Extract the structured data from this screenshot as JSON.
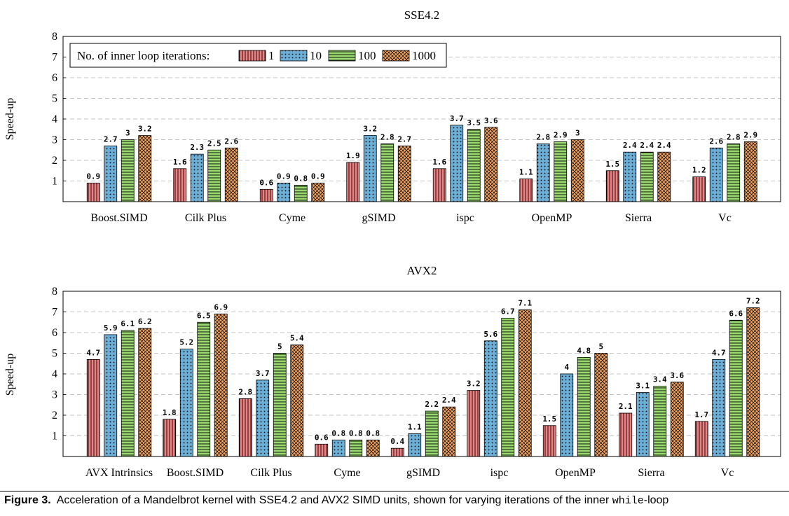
{
  "legend": {
    "title": "No. of inner loop iterations:",
    "entries": [
      "1",
      "10",
      "100",
      "1000"
    ]
  },
  "colors": {
    "s1": "#f08080",
    "s10": "#6baed6",
    "s100": "#98d86e",
    "s1000": "#f4a460"
  },
  "caption": {
    "label": "Figure 3.",
    "text_before": "Acceleration of a Mandelbrot kernel with SSE4.2 and AVX2 SIMD units, shown for varying iterations of the inner",
    "code": "while",
    "text_after": "-loop"
  },
  "chart_data": [
    {
      "type": "bar",
      "title": "SSE4.2",
      "ylabel": "Speed-up",
      "xlabel": "",
      "ylim": [
        0,
        8
      ],
      "yticks": [
        1,
        2,
        3,
        4,
        5,
        6,
        7,
        8
      ],
      "grid": true,
      "legend_position": "top-left",
      "categories": [
        "Boost.SIMD",
        "Cilk Plus",
        "Cyme",
        "gSIMD",
        "ispc",
        "OpenMP",
        "Sierra",
        "Vc"
      ],
      "series": [
        {
          "name": "1",
          "values": [
            0.9,
            1.6,
            0.6,
            1.9,
            1.6,
            1.1,
            1.5,
            1.2
          ]
        },
        {
          "name": "10",
          "values": [
            2.7,
            2.3,
            0.9,
            3.2,
            3.7,
            2.8,
            2.4,
            2.6
          ]
        },
        {
          "name": "100",
          "values": [
            3,
            2.5,
            0.8,
            2.8,
            3.5,
            2.9,
            2.4,
            2.8
          ]
        },
        {
          "name": "1000",
          "values": [
            3.2,
            2.6,
            0.9,
            2.7,
            3.6,
            3,
            2.4,
            2.9
          ]
        }
      ]
    },
    {
      "type": "bar",
      "title": "AVX2",
      "ylabel": "Speed-up",
      "xlabel": "",
      "ylim": [
        0,
        8
      ],
      "yticks": [
        1,
        2,
        3,
        4,
        5,
        6,
        7,
        8
      ],
      "grid": true,
      "categories": [
        "AVX Intrinsics",
        "Boost.SIMD",
        "Cilk Plus",
        "Cyme",
        "gSIMD",
        "ispc",
        "OpenMP",
        "Sierra",
        "Vc"
      ],
      "series": [
        {
          "name": "1",
          "values": [
            4.7,
            1.8,
            2.8,
            0.6,
            0.4,
            3.2,
            1.5,
            2.1,
            1.7
          ]
        },
        {
          "name": "10",
          "values": [
            5.9,
            5.2,
            3.7,
            0.8,
            1.1,
            5.6,
            4,
            3.1,
            4.7
          ]
        },
        {
          "name": "100",
          "values": [
            6.1,
            6.5,
            5,
            0.8,
            2.2,
            6.7,
            4.8,
            3.4,
            6.6
          ]
        },
        {
          "name": "1000",
          "values": [
            6.2,
            6.9,
            5.4,
            0.8,
            2.4,
            7.1,
            5,
            3.6,
            7.2
          ]
        }
      ]
    }
  ]
}
